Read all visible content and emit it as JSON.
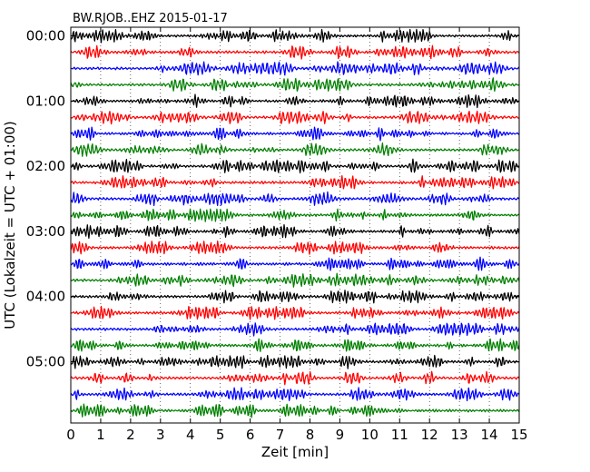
{
  "chart_data": {
    "type": "line",
    "title": "BW.RJOB..EHZ 2015-01-17",
    "xlabel": "Zeit  [min]",
    "ylabel": "UTC (Lokalzeit = UTC + 01:00)",
    "xlim": [
      0,
      15
    ],
    "xticks": [
      0,
      1,
      2,
      3,
      4,
      5,
      6,
      7,
      8,
      9,
      10,
      11,
      12,
      13,
      14,
      15
    ],
    "yticks": [
      "00:00",
      "01:00",
      "02:00",
      "03:00",
      "04:00",
      "05:00"
    ],
    "grid": true,
    "grid_style": "dotted",
    "trace_interval_minutes": 15,
    "series_colors": [
      "#000000",
      "#ff0000",
      "#0000ff",
      "#008000"
    ],
    "series": [
      {
        "start": "00:00"
      },
      {
        "start": "00:15"
      },
      {
        "start": "00:30"
      },
      {
        "start": "00:45"
      },
      {
        "start": "01:00"
      },
      {
        "start": "01:15"
      },
      {
        "start": "01:30"
      },
      {
        "start": "01:45"
      },
      {
        "start": "02:00"
      },
      {
        "start": "02:15"
      },
      {
        "start": "02:30"
      },
      {
        "start": "02:45"
      },
      {
        "start": "03:00"
      },
      {
        "start": "03:15"
      },
      {
        "start": "03:30"
      },
      {
        "start": "03:45"
      },
      {
        "start": "04:00"
      },
      {
        "start": "04:15"
      },
      {
        "start": "04:30"
      },
      {
        "start": "04:45"
      },
      {
        "start": "05:00"
      },
      {
        "start": "05:15"
      },
      {
        "start": "05:30"
      },
      {
        "start": "05:45"
      }
    ]
  }
}
